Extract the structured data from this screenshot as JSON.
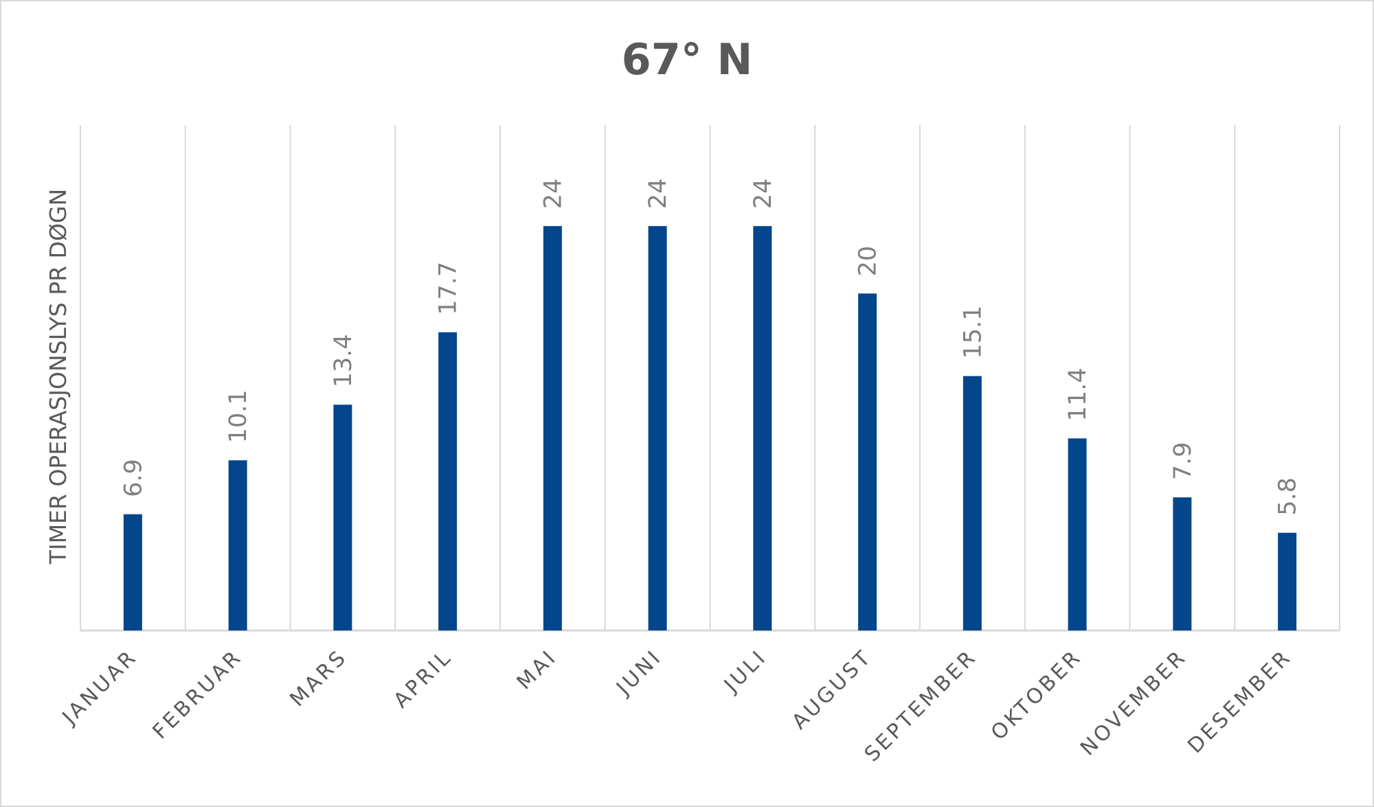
{
  "chart_data": {
    "type": "bar",
    "title": "67° N",
    "ylabel": "TIMER OPERASJONSLYS PR DØGN",
    "xlabel": "",
    "categories": [
      "JANUAR",
      "FEBRUAR",
      "MARS",
      "APRIL",
      "MAI",
      "JUNI",
      "JULI",
      "AUGUST",
      "SEPTEMBER",
      "OKTOBER",
      "NOVEMBER",
      "DESEMBER"
    ],
    "values": [
      6.9,
      10.1,
      13.4,
      17.7,
      24,
      24,
      24,
      20,
      15.1,
      11.4,
      7.9,
      5.8
    ],
    "data_labels": [
      "6.9",
      "10.1",
      "13.4",
      "17.7",
      "24",
      "24",
      "24",
      "20",
      "15.1",
      "11.4",
      "7.9",
      "5.8"
    ],
    "ylim": [
      0,
      30
    ],
    "bar_color": "#03468C",
    "gridlines": "vertical",
    "legend": "none"
  }
}
